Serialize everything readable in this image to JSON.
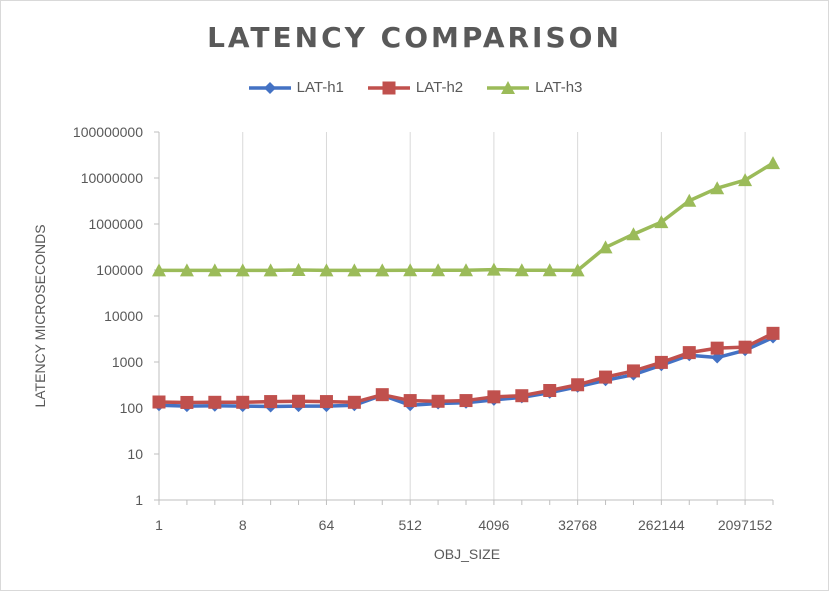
{
  "chart_data": {
    "type": "line",
    "title": "LATENCY  COMPARISON",
    "xlabel": "OBJ_SIZE",
    "ylabel": "LATENCY MICROSECONDS",
    "y_scale": "log",
    "ylim": [
      1,
      100000000
    ],
    "y_ticks": [
      "1",
      "10",
      "100",
      "1000",
      "10000",
      "100000",
      "1000000",
      "10000000",
      "100000000"
    ],
    "x_tick_labels": [
      "1",
      "8",
      "64",
      "512",
      "4096",
      "32768",
      "262144",
      "2097152"
    ],
    "x": [
      1,
      2,
      4,
      8,
      16,
      32,
      64,
      128,
      256,
      512,
      1024,
      2048,
      4096,
      8192,
      16384,
      32768,
      65536,
      131072,
      262144,
      524288,
      1048576,
      2097152,
      4194304
    ],
    "grid": "vertical",
    "legend_position": "top",
    "series": [
      {
        "name": "LAT-h1",
        "color": "#4472C4",
        "marker": "diamond",
        "values": [
          115,
          110,
          112,
          110,
          108,
          110,
          110,
          115,
          190,
          115,
          125,
          130,
          150,
          170,
          215,
          290,
          400,
          530,
          850,
          1400,
          1250,
          1800,
          3400
        ]
      },
      {
        "name": "LAT-h2",
        "color": "#C0504D",
        "marker": "square",
        "values": [
          135,
          132,
          133,
          133,
          138,
          140,
          138,
          133,
          195,
          145,
          140,
          145,
          175,
          185,
          240,
          320,
          470,
          640,
          980,
          1600,
          2000,
          2100,
          4200
        ]
      },
      {
        "name": "LAT-h3",
        "color": "#9BBB59",
        "marker": "triangle",
        "values": [
          98000,
          98000,
          98000,
          98000,
          98000,
          100000,
          98000,
          98000,
          98000,
          99000,
          99000,
          99000,
          102000,
          99000,
          99000,
          98000,
          310000,
          600000,
          1100000,
          3200000,
          6000000,
          9000000,
          21000000
        ]
      }
    ]
  }
}
